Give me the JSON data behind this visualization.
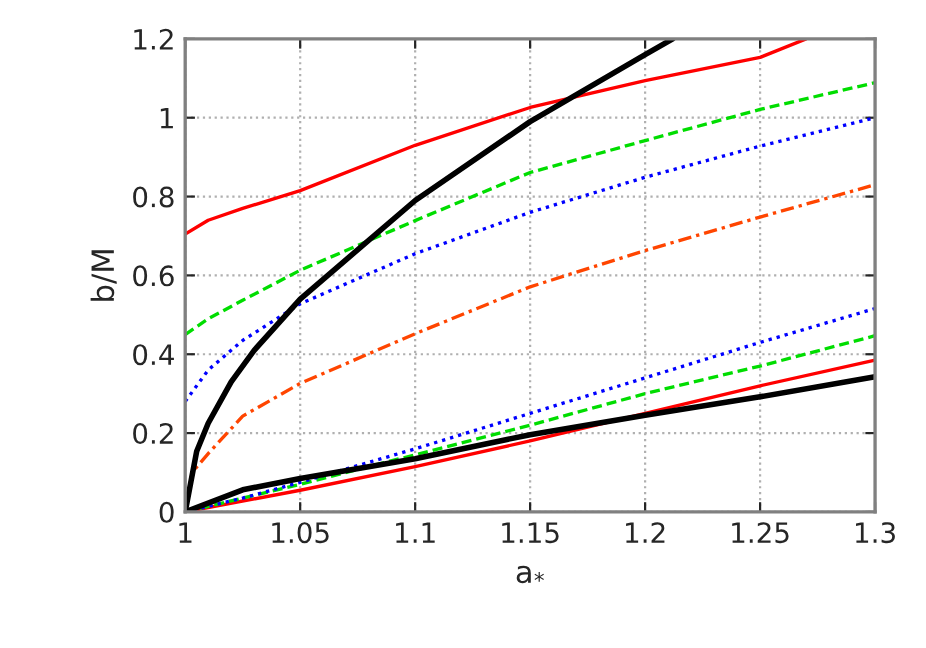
{
  "chart_data": {
    "type": "line",
    "xlabel": "a$_{*}$",
    "ylabel": "b/M",
    "xlim": [
      1,
      1.3
    ],
    "ylim": [
      0,
      1.2
    ],
    "xticks": [
      1,
      1.05,
      1.1,
      1.15,
      1.2,
      1.25,
      1.3
    ],
    "yticks": [
      0,
      0.2,
      0.4,
      0.6,
      0.8,
      1,
      1.2
    ],
    "grid": true,
    "series": [
      {
        "color": "#ff0000",
        "line_style": "solid",
        "x": [
          1,
          1.01,
          1.025,
          1.05,
          1.1,
          1.15,
          1.2,
          1.25,
          1.27
        ],
        "values": [
          0.705,
          0.74,
          0.77,
          0.815,
          0.93,
          1.026,
          1.094,
          1.153,
          1.2
        ]
      },
      {
        "color": "#00dd00",
        "line_style": "dashed",
        "x": [
          1,
          1.01,
          1.025,
          1.05,
          1.1,
          1.15,
          1.2,
          1.25,
          1.3
        ],
        "values": [
          0.45,
          0.49,
          0.537,
          0.613,
          0.739,
          0.861,
          0.942,
          1.021,
          1.089
        ]
      },
      {
        "color": "#0000ff",
        "line_style": "dotted",
        "x": [
          1,
          1.01,
          1.025,
          1.05,
          1.1,
          1.15,
          1.2,
          1.25,
          1.3
        ],
        "values": [
          0.28,
          0.36,
          0.435,
          0.528,
          0.655,
          0.76,
          0.849,
          0.928,
          1.0
        ]
      },
      {
        "color": "#ff4500",
        "line_style": "dashdot",
        "x": [
          1,
          1.003,
          1.01,
          1.025,
          1.05,
          1.1,
          1.15,
          1.2,
          1.25,
          1.3
        ],
        "values": [
          0,
          0.1,
          0.148,
          0.243,
          0.326,
          0.452,
          0.571,
          0.663,
          0.748,
          0.83
        ]
      },
      {
        "color": "#000000",
        "line_style": "solid",
        "x": [
          1,
          1.005,
          1.01,
          1.02,
          1.03,
          1.05,
          1.1,
          1.15,
          1.2,
          1.212
        ],
        "values": [
          0,
          0.154,
          0.225,
          0.33,
          0.41,
          0.54,
          0.79,
          0.99,
          1.16,
          1.2
        ]
      },
      {
        "color": "#ff0000",
        "line_style": "solid",
        "x": [
          1,
          1.05,
          1.1,
          1.15,
          1.2,
          1.25,
          1.3
        ],
        "values": [
          0,
          0.055,
          0.115,
          0.18,
          0.25,
          0.32,
          0.385
        ]
      },
      {
        "color": "#00dd00",
        "line_style": "dashed",
        "x": [
          1,
          1.05,
          1.1,
          1.15,
          1.2,
          1.25,
          1.3
        ],
        "values": [
          0,
          0.07,
          0.145,
          0.22,
          0.3,
          0.37,
          0.447
        ]
      },
      {
        "color": "#0000ff",
        "line_style": "dotted",
        "x": [
          1,
          1.025,
          1.05,
          1.1,
          1.15,
          1.2,
          1.25,
          1.3
        ],
        "values": [
          0,
          0.035,
          0.075,
          0.16,
          0.25,
          0.34,
          0.43,
          0.516
        ]
      },
      {
        "color": "#000000",
        "line_style": "solid",
        "x": [
          1,
          1.025,
          1.05,
          1.1,
          1.15,
          1.2,
          1.25,
          1.3
        ],
        "values": [
          0,
          0.056,
          0.085,
          0.135,
          0.196,
          0.245,
          0.292,
          0.343
        ]
      }
    ]
  }
}
